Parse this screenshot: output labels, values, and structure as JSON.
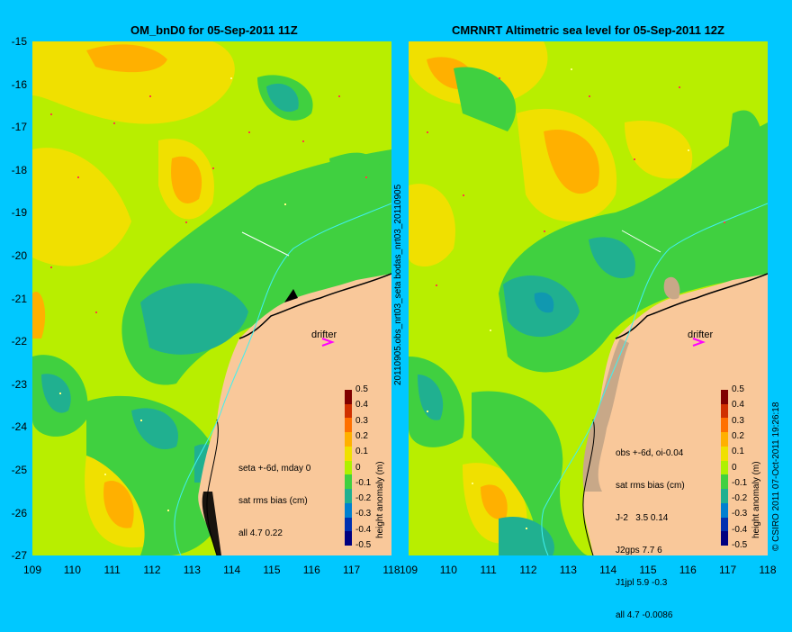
{
  "left": {
    "title": "OM_bnD0 for 05-Sep-2011 11Z",
    "stats": [
      "seta +-6d, mday 0",
      "sat rms bias (cm)",
      "all 4.7 0.22"
    ],
    "drifter_label": "drifter"
  },
  "right": {
    "title": "CMRNRT Altimetric sea level  for 05-Sep-2011 12Z",
    "stats": [
      "obs +-6d, oi-0.04",
      "sat rms bias (cm)",
      "J-2   3.5 0.14",
      "J2gps 7.7 6",
      "J1jpl 5.9 -0.3",
      "all 4.7 -0.0086"
    ],
    "drifter_label": "drifter"
  },
  "middle_label": "20110905.obs_nrt03_seta    bodas_nrt03_20110905",
  "copyright": "© CSIRO 2011   07-Oct-2011 19:26:18",
  "axes": {
    "lat_ticks": [
      "-15",
      "-16",
      "-17",
      "-18",
      "-19",
      "-20",
      "-21",
      "-22",
      "-23",
      "-24",
      "-25",
      "-26",
      "-27"
    ],
    "lon_ticks": [
      "109",
      "110",
      "111",
      "112",
      "113",
      "114",
      "115",
      "116",
      "117",
      "118"
    ]
  },
  "colorbar": {
    "labels": [
      "0.5",
      "0.4",
      "0.3",
      "0.2",
      "0.1",
      "0",
      "-0.1",
      "-0.2",
      "-0.3",
      "-0.4",
      "-0.5"
    ],
    "title": "height anomaly (m)",
    "colors": [
      "#800000",
      "#d03000",
      "#ff7000",
      "#ffb000",
      "#f0e000",
      "#b0f000",
      "#40d040",
      "#20b090",
      "#0080d0",
      "#0030b0",
      "#000080"
    ]
  },
  "colors": {
    "background": "#00c8ff",
    "land": "#f9c89a",
    "sea_base": "#b8ee00"
  }
}
